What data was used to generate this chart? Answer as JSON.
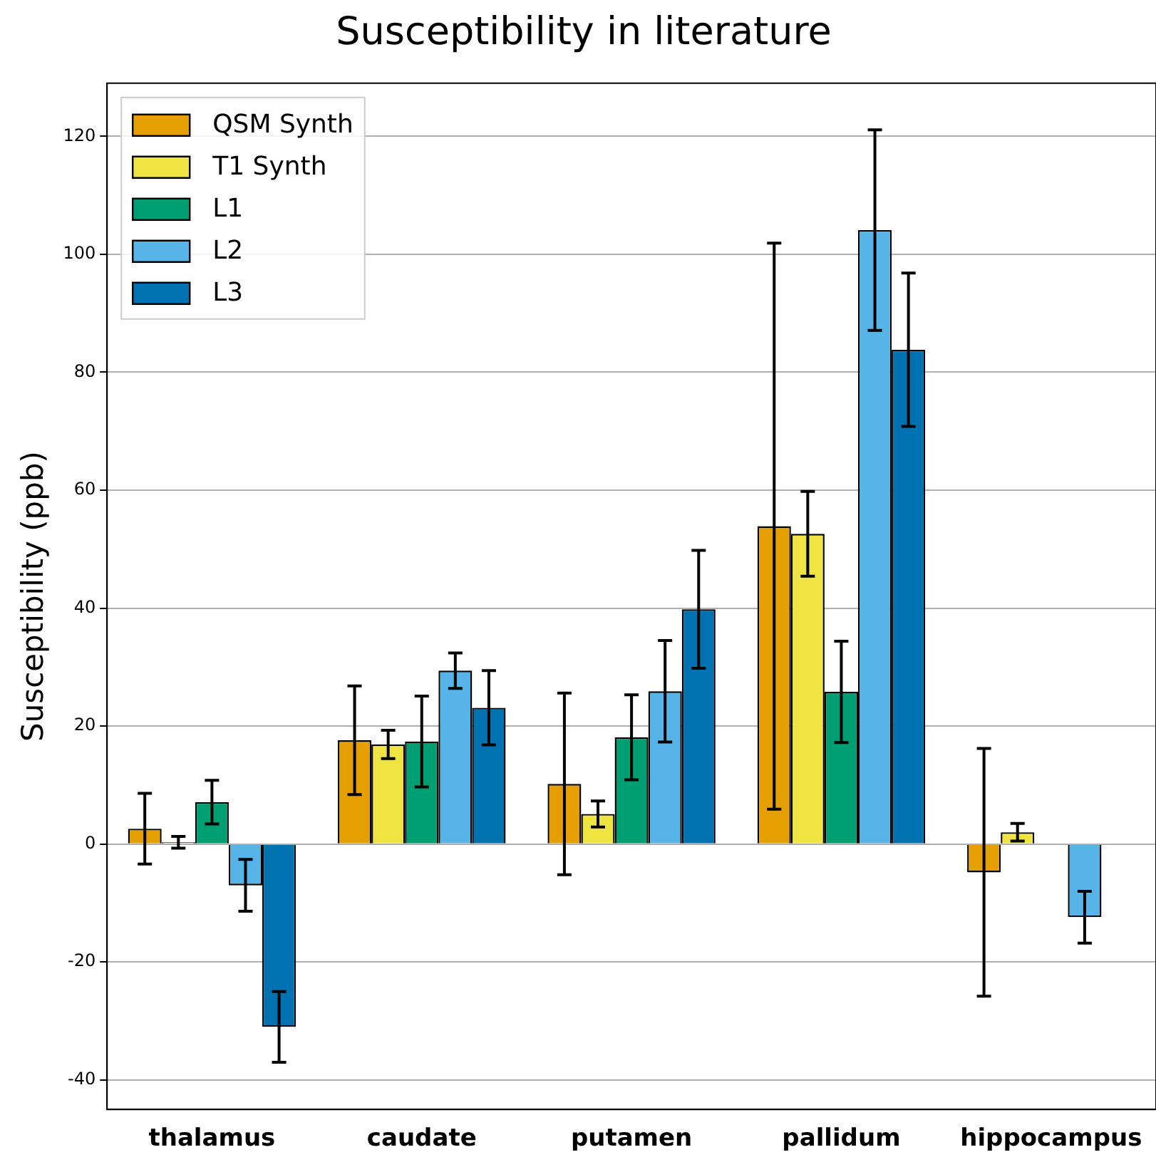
{
  "chart_data": {
    "type": "bar",
    "title": "Susceptibility in literature",
    "ylabel": "Susceptibility (ppb)",
    "categories": [
      "thalamus",
      "caudate",
      "putamen",
      "pallidum",
      "hippocampus"
    ],
    "series": [
      {
        "name": "QSM Synth",
        "color": "#e69f00",
        "values": [
          2.6,
          17.6,
          10.2,
          53.9,
          -4.8
        ],
        "errors": [
          6,
          9.2,
          15.4,
          48,
          21
        ]
      },
      {
        "name": "T1 Synth",
        "color": "#f0e442",
        "values": [
          0.3,
          16.9,
          5.1,
          52.6,
          2.0
        ],
        "errors": [
          1,
          2.4,
          2.2,
          7.2,
          1.5
        ]
      },
      {
        "name": "L1",
        "color": "#009e73",
        "values": [
          7.1,
          17.4,
          18.1,
          25.8,
          0
        ],
        "errors": [
          3.7,
          7.7,
          7.2,
          8.6,
          0
        ]
      },
      {
        "name": "L2",
        "color": "#56b4e9",
        "values": [
          -7,
          29.4,
          25.9,
          104.1,
          -12.4
        ],
        "errors": [
          4.4,
          3,
          8.6,
          17,
          4.4
        ]
      },
      {
        "name": "L3",
        "color": "#0072b2",
        "values": [
          -31,
          23.1,
          39.8,
          83.8,
          0
        ],
        "errors": [
          6,
          6.3,
          10,
          13,
          0
        ]
      }
    ],
    "ylim": [
      -45,
      129
    ],
    "yticks": [
      -40,
      -20,
      0,
      20,
      40,
      60,
      80,
      100,
      120
    ],
    "grid": "y",
    "legend": "top left"
  }
}
